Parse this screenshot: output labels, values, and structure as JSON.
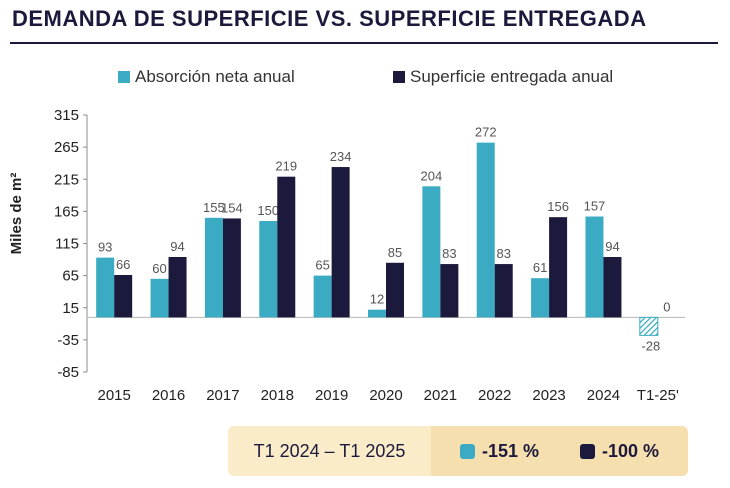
{
  "title": "DEMANDA DE SUPERFICIE VS. SUPERFICIE ENTREGADA",
  "chart_data": {
    "type": "bar",
    "ylabel": "Miles de m²",
    "ylim": [
      -85,
      315
    ],
    "yticks": [
      315,
      265,
      215,
      165,
      115,
      65,
      15,
      -35,
      -85
    ],
    "categories": [
      "2015",
      "2016",
      "2017",
      "2018",
      "2019",
      "2020",
      "2021",
      "2022",
      "2023",
      "2024",
      "T1-25'"
    ],
    "series": [
      {
        "name": "Absorción neta anual",
        "color": "#3aabc2",
        "values": [
          93,
          60,
          155,
          150,
          65,
          12,
          204,
          272,
          61,
          157,
          -28
        ]
      },
      {
        "name": "Superficie entregada anual",
        "color": "#1c1a3c",
        "values": [
          66,
          94,
          154,
          219,
          234,
          85,
          83,
          83,
          156,
          94,
          0
        ]
      }
    ],
    "legend_position": "top"
  },
  "summary": {
    "period": "T1 2024 – T1 2025",
    "changes": [
      {
        "label": "-151 %",
        "color": "#3aabc2"
      },
      {
        "label": "-100 %",
        "color": "#1c1a3c"
      }
    ]
  }
}
